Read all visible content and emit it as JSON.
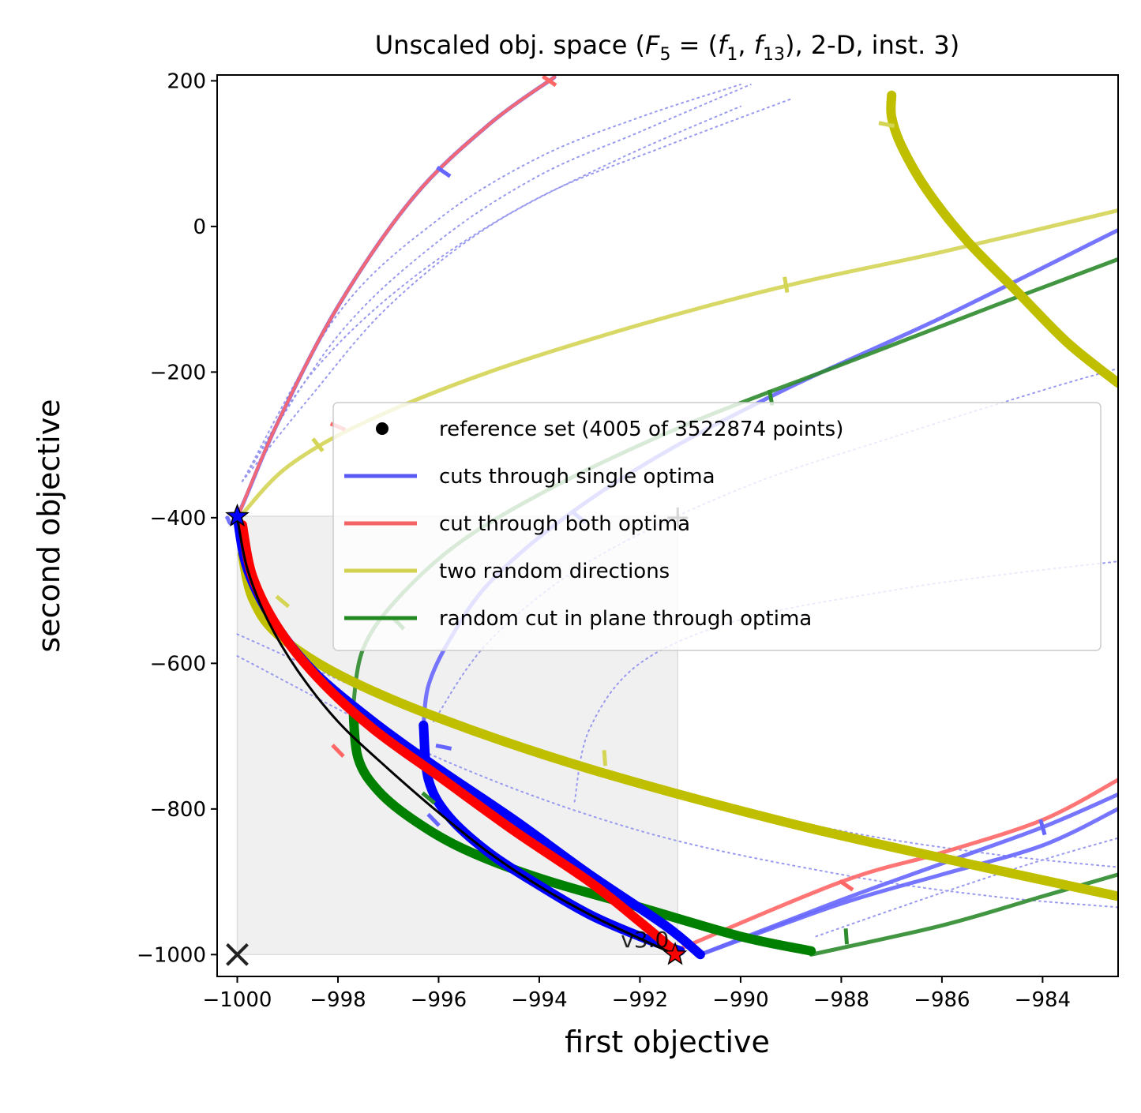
{
  "chart_data": {
    "type": "line",
    "title": {
      "prefix": "Unscaled obj. space (",
      "F": "F",
      "F_sub": "5",
      "eq": " = (",
      "f1": "f",
      "f1_sub": "1",
      "comma": ", ",
      "f2": "f",
      "f2_sub": "13",
      "suffix": "), 2-D, inst. 3)"
    },
    "xlabel": "first objective",
    "ylabel": "second objective",
    "xlim": [
      -1000.4,
      -982.5
    ],
    "ylim": [
      -1030,
      208
    ],
    "xticks": [
      -1000,
      -998,
      -996,
      -994,
      -992,
      -990,
      -988,
      -986,
      -984
    ],
    "yticks": [
      200,
      0,
      -200,
      -400,
      -600,
      -800,
      -1000
    ],
    "grid": false,
    "legend_position": "center-right",
    "legend": [
      {
        "label": "reference set (4005 of 3522874 points)",
        "style": "dot",
        "color": "#000000"
      },
      {
        "label": "cuts through single optima",
        "style": "line",
        "color": "#5a5af5"
      },
      {
        "label": "cut through both optima",
        "style": "line",
        "color": "#f56464"
      },
      {
        "label": "two random directions",
        "style": "line",
        "color": "#d2d250"
      },
      {
        "label": "random cut in plane through optima",
        "style": "line",
        "color": "#208a20"
      }
    ],
    "colors": {
      "blue": "#0000ff",
      "red": "#ff0000",
      "olive": "#bfbf00",
      "green": "#008000",
      "light_blue_line": "#6666ff",
      "light_red_line": "#ff6666",
      "light_yellow_line": "#d4d455",
      "light_green_line": "#2e8b2e",
      "dotted": "#9999ee",
      "region": "#f0f0f0"
    },
    "version_label": "v3.0",
    "ideal_point": [
      -1000,
      -1000
    ],
    "nadir_point": [
      -991.25,
      -400
    ],
    "optimum_1": [
      -1000,
      -398
    ],
    "optimum_2": [
      -991.3,
      -1000
    ],
    "region": {
      "x": [
        -1000,
        -991.25
      ],
      "y": [
        -1000,
        -398
      ]
    },
    "series": [
      {
        "name": "reference set (4005 of 3522874 points)",
        "kind": "front",
        "x": [
          -1000,
          -999.8,
          -999.4,
          -998.8,
          -998,
          -997,
          -996,
          -995,
          -994,
          -993,
          -992,
          -991.3
        ],
        "y": [
          -400,
          -470,
          -540,
          -610,
          -680,
          -745,
          -805,
          -860,
          -906,
          -945,
          -978,
          -1000
        ]
      },
      {
        "kind": "cut",
        "color": "light_blue_line",
        "width": 5,
        "x": [
          -993.7,
          -995,
          -996.5,
          -998,
          -999.2,
          -1000,
          -1000.2
        ],
        "y": [
          205,
          140,
          40,
          -110,
          -270,
          -398,
          -400
        ]
      },
      {
        "kind": "cut",
        "color": "light_red_line",
        "width": 4,
        "x": [
          -993.7,
          -995,
          -996.5,
          -998,
          -999.2,
          -1000
        ],
        "y": [
          205,
          140,
          40,
          -110,
          -270,
          -400
        ]
      },
      {
        "kind": "cut",
        "color": "light_yellow_line",
        "width": 5,
        "x": [
          -999.9,
          -999,
          -997.5,
          -995,
          -992,
          -989,
          -986,
          -982.5
        ],
        "y": [
          -395,
          -330,
          -270,
          -200,
          -135,
          -80,
          -35,
          22
        ]
      },
      {
        "kind": "cut",
        "color": "light_blue_line",
        "width": 5,
        "x": [
          -996.3,
          -996.2,
          -995.8,
          -995,
          -993.5,
          -991.5,
          -989,
          -986,
          -982.5
        ],
        "y": [
          -685,
          -630,
          -570,
          -490,
          -400,
          -310,
          -220,
          -125,
          -5
        ]
      },
      {
        "kind": "cut",
        "color": "light_green_line",
        "width": 5,
        "x": [
          -997.7,
          -997.5,
          -996.8,
          -995.5,
          -993.5,
          -991,
          -988,
          -985,
          -982.5
        ],
        "y": [
          -660,
          -580,
          -510,
          -430,
          -350,
          -270,
          -190,
          -110,
          -45
        ]
      },
      {
        "kind": "cut",
        "color": "light_blue_line",
        "width": 5,
        "x": [
          -990.8,
          -988,
          -986,
          -984,
          -982.5
        ],
        "y": [
          -1000,
          -925,
          -875,
          -825,
          -780
        ]
      },
      {
        "kind": "cut",
        "color": "light_blue_line",
        "width": 5,
        "x": [
          -990.8,
          -988,
          -986,
          -984,
          -982.5
        ],
        "y": [
          -1000,
          -930,
          -890,
          -850,
          -800
        ]
      },
      {
        "kind": "cut",
        "color": "light_red_line",
        "width": 5,
        "x": [
          -991.3,
          -988,
          -986,
          -984,
          -982.5
        ],
        "y": [
          -995,
          -900,
          -860,
          -815,
          -760
        ]
      },
      {
        "kind": "cut",
        "color": "light_green_line",
        "width": 5,
        "x": [
          -988.6,
          -986,
          -984,
          -982.5
        ],
        "y": [
          -1000,
          -960,
          -920,
          -890
        ]
      },
      {
        "kind": "dotted",
        "x": [
          -999.9,
          -998,
          -996,
          -994,
          -992,
          -990
        ],
        "y": [
          -350,
          -120,
          10,
          95,
          150,
          195
        ]
      },
      {
        "kind": "dotted",
        "x": [
          -999.9,
          -998,
          -996,
          -994,
          -992,
          -989.8
        ],
        "y": [
          -350,
          -150,
          -20,
          70,
          130,
          195
        ]
      },
      {
        "kind": "dotted",
        "x": [
          -999.9,
          -998.5,
          -996.5,
          -994,
          -991.5,
          -989
        ],
        "y": [
          -350,
          -200,
          -70,
          40,
          110,
          175
        ]
      },
      {
        "kind": "dotted",
        "x": [
          -999.9,
          -998.5,
          -997,
          -995,
          -992.5,
          -990
        ],
        "y": [
          -350,
          -230,
          -110,
          0,
          90,
          165
        ]
      },
      {
        "kind": "dotted",
        "x": [
          -996.1,
          -995,
          -993,
          -990,
          -987,
          -984,
          -982.5
        ],
        "y": [
          -680,
          -570,
          -460,
          -360,
          -290,
          -225,
          -195
        ]
      },
      {
        "kind": "dotted",
        "x": [
          -993.3,
          -993,
          -992,
          -990,
          -987,
          -985,
          -982.5
        ],
        "y": [
          -790,
          -690,
          -600,
          -540,
          -500,
          -480,
          -460
        ]
      },
      {
        "kind": "dotted",
        "x": [
          -1000,
          -996,
          -992,
          -988,
          -985,
          -982.5
        ],
        "y": [
          -560,
          -680,
          -770,
          -830,
          -862,
          -880
        ]
      },
      {
        "kind": "dotted",
        "x": [
          -1000,
          -996,
          -992,
          -988,
          -985,
          -982.5
        ],
        "y": [
          -590,
          -730,
          -830,
          -890,
          -920,
          -935
        ]
      },
      {
        "kind": "dotted",
        "x": [
          -988.5,
          -986,
          -984,
          -982.5
        ],
        "y": [
          -975,
          -915,
          -870,
          -840
        ]
      },
      {
        "kind": "thick",
        "color": "olive",
        "x": [
          -987,
          -987,
          -986.8,
          -986.3,
          -985.5,
          -984.5,
          -983.5,
          -982.5
        ],
        "y": [
          180,
          150,
          110,
          50,
          -20,
          -90,
          -160,
          -215
        ]
      },
      {
        "kind": "thick",
        "color": "olive",
        "x": [
          -999.9,
          -999.7,
          -999.2,
          -998,
          -996,
          -993,
          -989,
          -985.5,
          -982.5
        ],
        "y": [
          -450,
          -510,
          -560,
          -615,
          -675,
          -745,
          -820,
          -875,
          -920
        ]
      },
      {
        "kind": "thick",
        "color": "green",
        "x": [
          -997.7,
          -997.6,
          -997.2,
          -996.5,
          -995.5,
          -994,
          -992,
          -990,
          -988.6
        ],
        "y": [
          -660,
          -730,
          -775,
          -815,
          -855,
          -895,
          -935,
          -975,
          -995
        ]
      },
      {
        "kind": "thick",
        "color": "blue",
        "x": [
          -996.3,
          -996.2,
          -995.8,
          -995,
          -994,
          -993,
          -992,
          -991.2
        ],
        "y": [
          -685,
          -760,
          -810,
          -860,
          -905,
          -945,
          -975,
          -995
        ]
      },
      {
        "kind": "thick",
        "color": "blue",
        "x": [
          -1000,
          -999.8,
          -999.3,
          -998.5,
          -997.3,
          -996,
          -994.5,
          -993,
          -991.5,
          -990.8
        ],
        "y": [
          -398,
          -470,
          -540,
          -610,
          -680,
          -745,
          -815,
          -890,
          -960,
          -1000
        ]
      },
      {
        "kind": "thick",
        "color": "red",
        "x": [
          -999.9,
          -999.7,
          -999.2,
          -998.4,
          -997.3,
          -996,
          -994.5,
          -993,
          -992,
          -991.4
        ],
        "y": [
          -410,
          -480,
          -550,
          -620,
          -690,
          -755,
          -830,
          -900,
          -955,
          -990
        ]
      }
    ]
  }
}
